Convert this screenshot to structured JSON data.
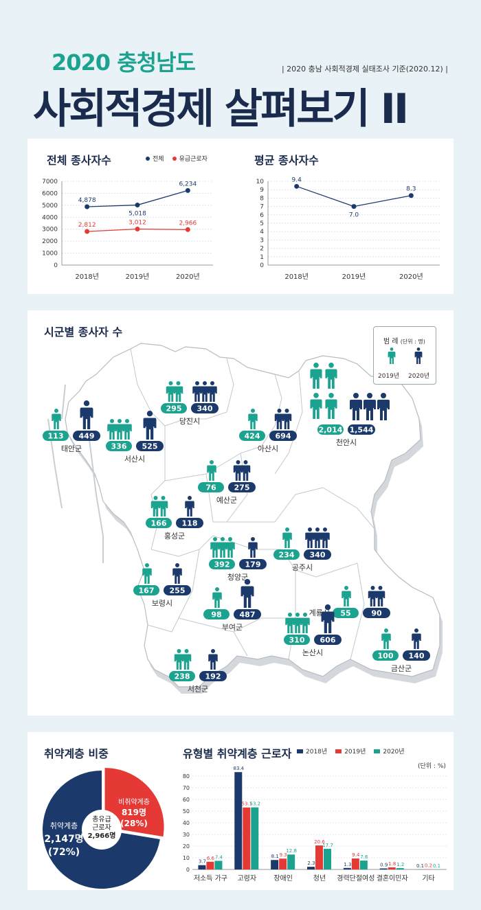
{
  "header": {
    "subtitle": "2020 충청남도",
    "source": "| 2020 충남 사회적경제 실태조사 기준(2020.12) |",
    "title": "사회적경제 살펴보기 II"
  },
  "colors": {
    "navy": "#1b3a6b",
    "red": "#e53935",
    "teal": "#1ba38f",
    "bg": "#e9f2f7"
  },
  "chart_data": [
    {
      "type": "line",
      "title": "전체 종사자수",
      "categories": [
        "2018년",
        "2019년",
        "2020년"
      ],
      "series": [
        {
          "name": "전체",
          "values": [
            4878,
            5018,
            6234
          ],
          "labels": [
            "4,878",
            "5,018",
            "6,234"
          ],
          "color": "#1b3a6b"
        },
        {
          "name": "유급근로자",
          "values": [
            2812,
            3012,
            2966
          ],
          "labels": [
            "2,812",
            "3,012",
            "2,966"
          ],
          "color": "#e53935"
        }
      ],
      "ylim": [
        0,
        7000
      ],
      "yticks": [
        "0",
        "1000",
        "2000",
        "3000",
        "4000",
        "5000",
        "6000",
        "7000"
      ]
    },
    {
      "type": "line",
      "title": "평균 종사자수",
      "categories": [
        "2018년",
        "2019년",
        "2020년"
      ],
      "series": [
        {
          "values": [
            9.4,
            7.0,
            8.3
          ],
          "labels": [
            "9.4",
            "7.0",
            "8.3"
          ],
          "color": "#1b3a6b"
        }
      ],
      "ylim": [
        0,
        10
      ],
      "yticks": [
        "0",
        "1",
        "2",
        "3",
        "4",
        "5",
        "6",
        "7",
        "8",
        "9",
        "10"
      ]
    },
    {
      "type": "pie",
      "title": "취약계층 비중",
      "center_label": [
        "총유급",
        "근로자",
        "2,966명"
      ],
      "slices": [
        {
          "name": "취약계층",
          "value": 2147,
          "label": "2,147명",
          "pct": "(72%)",
          "color": "#1b3a6b"
        },
        {
          "name": "비취약계층",
          "value": 819,
          "label": "819명",
          "pct": "(28%)",
          "color": "#e53935"
        }
      ]
    },
    {
      "type": "bar",
      "title": "유형별 취약계층 근로자",
      "unit": "(단위 : %)",
      "categories": [
        "저소득 가구",
        "고령자",
        "장애인",
        "청년",
        "경력단절여성",
        "결혼이민자",
        "기타"
      ],
      "series": [
        {
          "name": "2018년",
          "values": [
            3.7,
            83.4,
            8.1,
            2.3,
            1.3,
            0.9,
            0.1
          ],
          "labels": [
            "3.7",
            "83.4",
            "8.1",
            "2.3",
            "1.3",
            "0.9",
            "0.1"
          ],
          "color": "#1b3a6b"
        },
        {
          "name": "2019년",
          "values": [
            6.6,
            53.1,
            9.3,
            20.6,
            9.4,
            1.8,
            0.2
          ],
          "labels": [
            "6.6",
            "53.1",
            "9.3",
            "20.6",
            "9.4",
            "1.8",
            "0.2"
          ],
          "color": "#e53935"
        },
        {
          "name": "2020년",
          "values": [
            7.4,
            53.2,
            12.8,
            17.7,
            7.6,
            1.2,
            0.1
          ],
          "labels": [
            "7.4",
            "53.2",
            "12.8",
            "17.7",
            "7.6",
            "1.2",
            "0.1"
          ],
          "color": "#1ba38f"
        }
      ],
      "ylim": [
        0,
        80
      ],
      "yticks": [
        "0",
        "10",
        "20",
        "30",
        "40",
        "50",
        "60",
        "70",
        "80"
      ]
    }
  ],
  "map": {
    "title": "시군별 종사자 수",
    "legend": {
      "title": "범 례",
      "unit": "(단위 : 명)",
      "a": "2019년",
      "b": "2020년"
    },
    "regions": [
      {
        "name": "당진시",
        "v2019": "295",
        "v2020": "340",
        "n2019": 2,
        "n2020": 3
      },
      {
        "name": "태안군",
        "v2019": "113",
        "v2020": "449",
        "n2019": 1,
        "n2020": 1
      },
      {
        "name": "서산시",
        "v2019": "336",
        "v2020": "525",
        "n2019": 3,
        "n2020": 1
      },
      {
        "name": "아산시",
        "v2019": "424",
        "v2020": "694",
        "n2019": 1,
        "n2020": 2
      },
      {
        "name": "천안시",
        "v2019": "2,014",
        "v2020": "1,544",
        "n2019": 4,
        "n2020": 3
      },
      {
        "name": "예산군",
        "v2019": "76",
        "v2020": "275",
        "n2019": 1,
        "n2020": 2
      },
      {
        "name": "홍성군",
        "v2019": "166",
        "v2020": "118",
        "n2019": 2,
        "n2020": 1
      },
      {
        "name": "청양군",
        "v2019": "392",
        "v2020": "179",
        "n2019": 3,
        "n2020": 1
      },
      {
        "name": "공주시",
        "v2019": "234",
        "v2020": "340",
        "n2019": 1,
        "n2020": 3
      },
      {
        "name": "보령시",
        "v2019": "167",
        "v2020": "255",
        "n2019": 1,
        "n2020": 1
      },
      {
        "name": "계룡시",
        "v2019": "55",
        "v2020": "90",
        "n2019": 1,
        "n2020": 2
      },
      {
        "name": "부여군",
        "v2019": "98",
        "v2020": "487",
        "n2019": 1,
        "n2020": 1
      },
      {
        "name": "논산시",
        "v2019": "310",
        "v2020": "606",
        "n2019": 3,
        "n2020": 1
      },
      {
        "name": "금산군",
        "v2019": "100",
        "v2020": "140",
        "n2019": 1,
        "n2020": 1
      },
      {
        "name": "서천군",
        "v2019": "238",
        "v2020": "192",
        "n2019": 2,
        "n2020": 1
      }
    ]
  }
}
